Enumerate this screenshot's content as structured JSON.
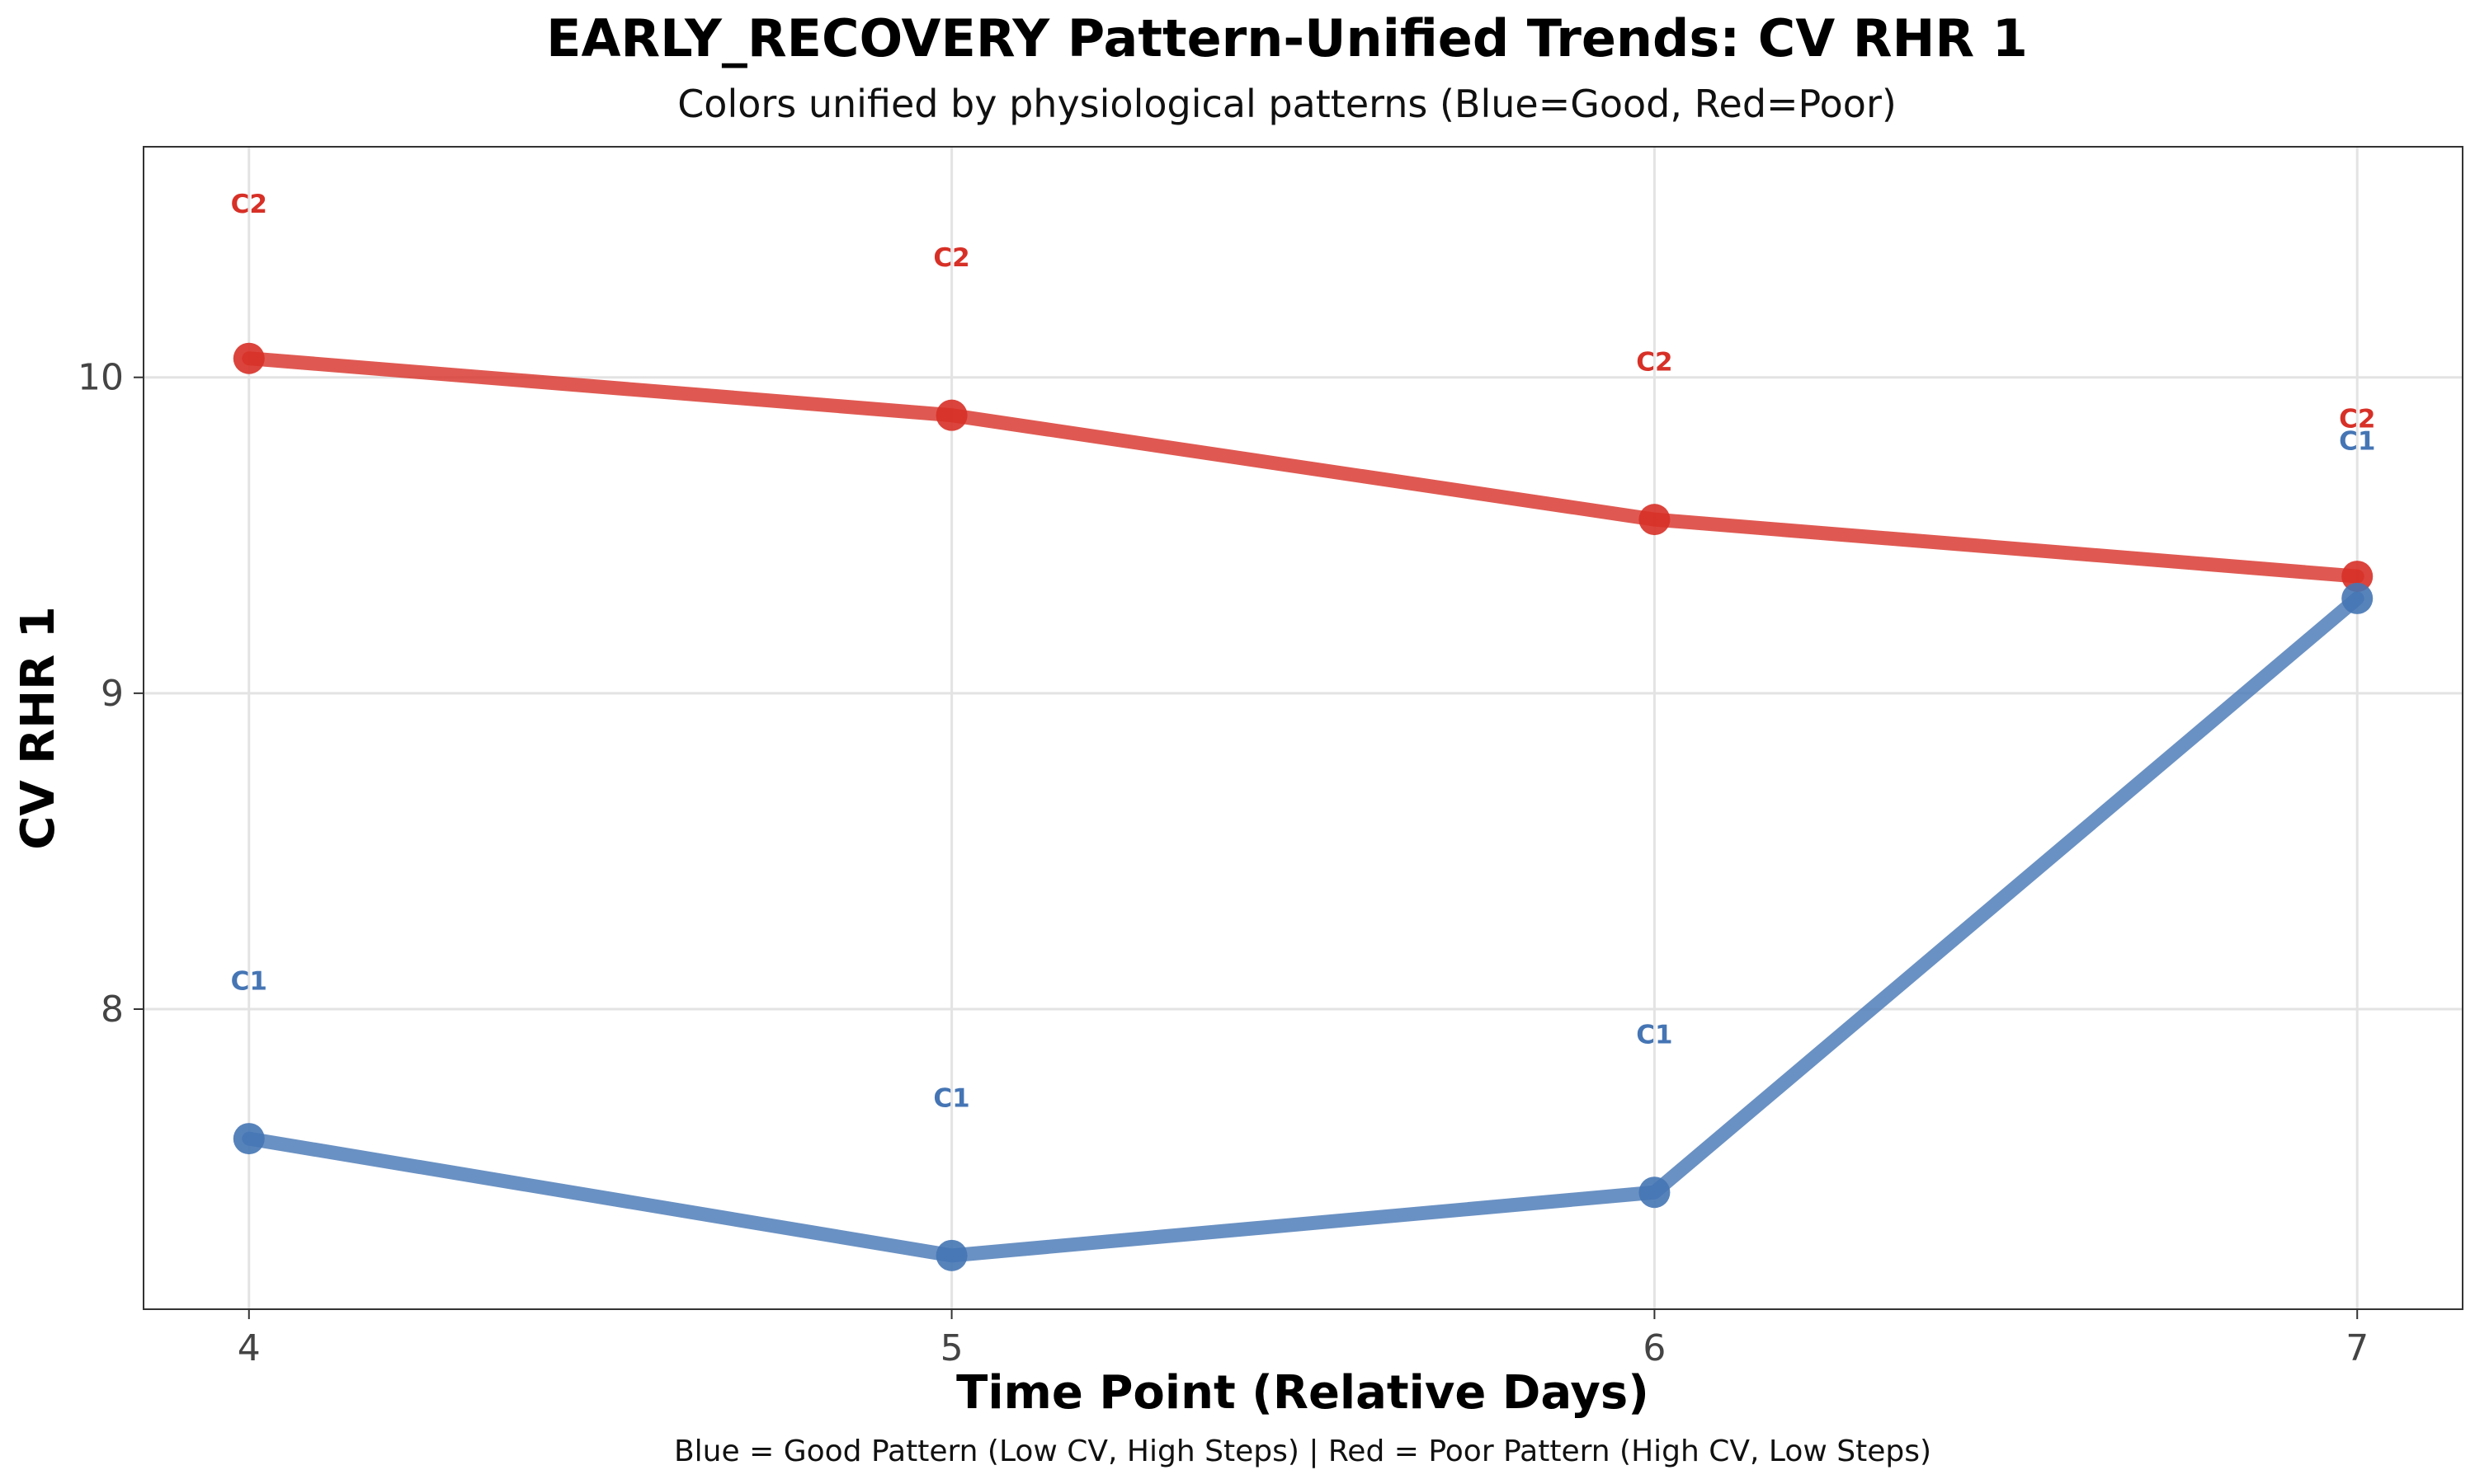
{
  "chart_data": {
    "type": "line",
    "title": "EARLY_RECOVERY Pattern-Unified Trends: CV RHR 1",
    "subtitle": "Colors unified by physiological patterns (Blue=Good, Red=Poor)",
    "xlabel": "Time Point (Relative Days)",
    "ylabel": "CV RHR 1",
    "caption": "Blue = Good Pattern (Low CV, High Steps) | Red = Poor Pattern (High CV, Low Steps)",
    "x": [
      4,
      5,
      6,
      7
    ],
    "xlim": [
      3.85,
      7.15
    ],
    "ylim": [
      7.05,
      10.73
    ],
    "x_ticks": [
      4,
      5,
      6,
      7
    ],
    "y_ticks": [
      8,
      9,
      10
    ],
    "grid": true,
    "legend": "none",
    "series": [
      {
        "name": "C2",
        "color": "#d73027",
        "values": [
          10.06,
          9.88,
          9.55,
          9.37
        ],
        "label_y": [
          10.55,
          10.38,
          10.05,
          9.87
        ]
      },
      {
        "name": "C1",
        "color": "#4575b4",
        "values": [
          7.59,
          7.22,
          7.42,
          9.3
        ],
        "label_y": [
          8.09,
          7.72,
          7.92,
          9.8
        ]
      }
    ]
  }
}
